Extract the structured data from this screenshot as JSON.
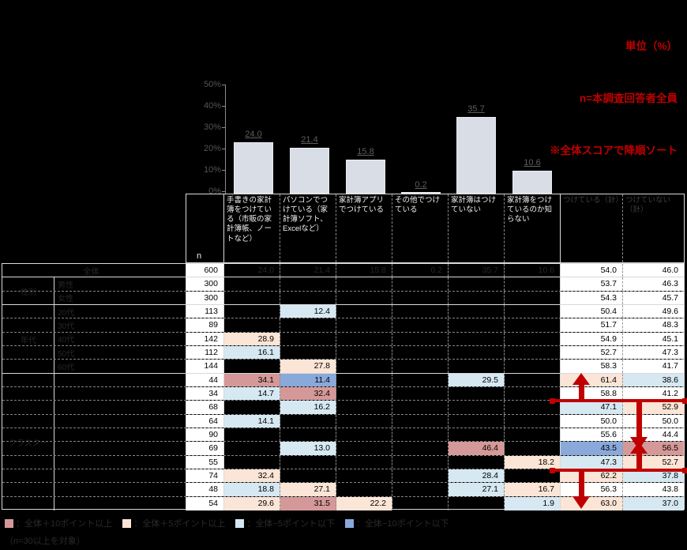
{
  "annotations": {
    "unit": "単位（%）",
    "n_note": "n=本調査回答者全員",
    "sort_note": "※全体スコアで降順ソート"
  },
  "chart_data": {
    "type": "bar",
    "title": "",
    "xlabel": "",
    "ylabel": "%",
    "ylim": [
      0,
      50
    ],
    "grid": false,
    "legend_position": "none",
    "categories": [
      "手書きの家計簿をつけている（市販の家計簿帳、ノートなど）",
      "パソコンでつけている（家計簿ソフト、Excelなど）",
      "家計簿アプリでつけている",
      "その他でつけている",
      "家計簿はつけていない",
      "家計簿をつけているのか知らない"
    ],
    "values": [
      24.0,
      21.4,
      15.8,
      0.2,
      35.7,
      10.6
    ],
    "bar_labels": [
      "24.0",
      "21.4",
      "15.8",
      "0.2",
      "35.7",
      "10.6"
    ],
    "ytick_labels": [
      "50%",
      "40%",
      "30%",
      "20%",
      "10%",
      "0%"
    ]
  },
  "table": {
    "n_header": "n",
    "col_headers": [
      "手書きの家計簿をつけている（市販の家計簿帳、ノートなど）",
      "パソコンでつけている（家計簿ソフト、Excelなど）",
      "家計簿アプリでつけている",
      "その他でつけている",
      "家計簿はつけていない",
      "家計簿をつけているのか知らない"
    ],
    "total_headers": [
      "つけている（計）",
      "つけていない（計）"
    ],
    "groups": [
      {
        "label": "全体",
        "span": 1
      },
      {
        "label": "性別",
        "span": 2
      },
      {
        "label": "年代",
        "span": 5
      },
      {
        "label": "クラスター",
        "span": 10
      }
    ],
    "rows": [
      {
        "label": "全体",
        "n": "600",
        "cells": [
          {
            "v": "24.0",
            "h": "g"
          },
          {
            "v": "21.4",
            "h": "g"
          },
          {
            "v": "15.8",
            "h": "g"
          },
          {
            "v": "0.2",
            "h": "g"
          },
          {
            "v": "35.7",
            "h": "g"
          },
          {
            "v": "10.6",
            "h": "g"
          }
        ],
        "totals": [
          {
            "v": "54.0",
            "h": ""
          },
          {
            "v": "46.0",
            "h": ""
          }
        ]
      },
      {
        "label": "男性",
        "n": "300",
        "cells": [
          {
            "v": "",
            "h": ""
          },
          {
            "v": "",
            "h": ""
          },
          {
            "v": "",
            "h": ""
          },
          {
            "v": "",
            "h": ""
          },
          {
            "v": "",
            "h": ""
          },
          {
            "v": "",
            "h": ""
          }
        ],
        "totals": [
          {
            "v": "53.7",
            "h": ""
          },
          {
            "v": "46.3",
            "h": ""
          }
        ]
      },
      {
        "label": "女性",
        "n": "300",
        "cells": [
          {
            "v": "",
            "h": ""
          },
          {
            "v": "",
            "h": ""
          },
          {
            "v": "",
            "h": ""
          },
          {
            "v": "",
            "h": ""
          },
          {
            "v": "",
            "h": ""
          },
          {
            "v": "",
            "h": ""
          }
        ],
        "totals": [
          {
            "v": "54.3",
            "h": ""
          },
          {
            "v": "45.7",
            "h": ""
          }
        ]
      },
      {
        "label": "20代",
        "n": "113",
        "cells": [
          {
            "v": "",
            "h": ""
          },
          {
            "v": "12.4",
            "h": "b"
          },
          {
            "v": "",
            "h": ""
          },
          {
            "v": "",
            "h": ""
          },
          {
            "v": "",
            "h": ""
          },
          {
            "v": "",
            "h": ""
          }
        ],
        "totals": [
          {
            "v": "50.4",
            "h": ""
          },
          {
            "v": "49.6",
            "h": ""
          }
        ]
      },
      {
        "label": "30代",
        "n": "89",
        "cells": [
          {
            "v": "",
            "h": ""
          },
          {
            "v": "",
            "h": ""
          },
          {
            "v": "",
            "h": ""
          },
          {
            "v": "",
            "h": ""
          },
          {
            "v": "",
            "h": ""
          },
          {
            "v": "",
            "h": ""
          }
        ],
        "totals": [
          {
            "v": "51.7",
            "h": ""
          },
          {
            "v": "48.3",
            "h": ""
          }
        ]
      },
      {
        "label": "40代",
        "n": "142",
        "cells": [
          {
            "v": "28.9",
            "h": "p"
          },
          {
            "v": "",
            "h": ""
          },
          {
            "v": "",
            "h": ""
          },
          {
            "v": "",
            "h": ""
          },
          {
            "v": "",
            "h": ""
          },
          {
            "v": "",
            "h": ""
          }
        ],
        "totals": [
          {
            "v": "54.9",
            "h": ""
          },
          {
            "v": "45.1",
            "h": ""
          }
        ]
      },
      {
        "label": "50代",
        "n": "112",
        "cells": [
          {
            "v": "16.1",
            "h": "b"
          },
          {
            "v": "",
            "h": ""
          },
          {
            "v": "",
            "h": ""
          },
          {
            "v": "",
            "h": ""
          },
          {
            "v": "",
            "h": ""
          },
          {
            "v": "",
            "h": ""
          }
        ],
        "totals": [
          {
            "v": "52.7",
            "h": ""
          },
          {
            "v": "47.3",
            "h": ""
          }
        ]
      },
      {
        "label": "60代",
        "n": "144",
        "cells": [
          {
            "v": "",
            "h": ""
          },
          {
            "v": "27.8",
            "h": "p"
          },
          {
            "v": "",
            "h": ""
          },
          {
            "v": "",
            "h": ""
          },
          {
            "v": "",
            "h": ""
          },
          {
            "v": "",
            "h": ""
          }
        ],
        "totals": [
          {
            "v": "58.3",
            "h": ""
          },
          {
            "v": "41.7",
            "h": ""
          }
        ]
      },
      {
        "label": "",
        "n": "44",
        "cells": [
          {
            "v": "34.1",
            "h": "P"
          },
          {
            "v": "11.4",
            "h": "B"
          },
          {
            "v": "",
            "h": ""
          },
          {
            "v": "",
            "h": ""
          },
          {
            "v": "29.5",
            "h": "b"
          },
          {
            "v": "",
            "h": ""
          }
        ],
        "totals": [
          {
            "v": "61.4",
            "h": "p"
          },
          {
            "v": "38.6",
            "h": "b"
          }
        ]
      },
      {
        "label": "",
        "n": "34",
        "cells": [
          {
            "v": "14.7",
            "h": "b"
          },
          {
            "v": "32.4",
            "h": "P"
          },
          {
            "v": "",
            "h": ""
          },
          {
            "v": "",
            "h": ""
          },
          {
            "v": "",
            "h": ""
          },
          {
            "v": "",
            "h": ""
          }
        ],
        "totals": [
          {
            "v": "58.8",
            "h": ""
          },
          {
            "v": "41.2",
            "h": ""
          }
        ]
      },
      {
        "label": "",
        "n": "68",
        "cells": [
          {
            "v": "",
            "h": ""
          },
          {
            "v": "16.2",
            "h": "b"
          },
          {
            "v": "",
            "h": ""
          },
          {
            "v": "",
            "h": ""
          },
          {
            "v": "",
            "h": ""
          },
          {
            "v": "",
            "h": ""
          }
        ],
        "totals": [
          {
            "v": "47.1",
            "h": "b"
          },
          {
            "v": "52.9",
            "h": "p"
          }
        ]
      },
      {
        "label": "",
        "n": "64",
        "cells": [
          {
            "v": "14.1",
            "h": "b"
          },
          {
            "v": "",
            "h": ""
          },
          {
            "v": "",
            "h": ""
          },
          {
            "v": "",
            "h": ""
          },
          {
            "v": "",
            "h": ""
          },
          {
            "v": "",
            "h": ""
          }
        ],
        "totals": [
          {
            "v": "50.0",
            "h": ""
          },
          {
            "v": "50.0",
            "h": ""
          }
        ]
      },
      {
        "label": "",
        "n": "90",
        "cells": [
          {
            "v": "",
            "h": ""
          },
          {
            "v": "",
            "h": ""
          },
          {
            "v": "",
            "h": ""
          },
          {
            "v": "",
            "h": ""
          },
          {
            "v": "",
            "h": ""
          },
          {
            "v": "",
            "h": ""
          }
        ],
        "totals": [
          {
            "v": "55.6",
            "h": ""
          },
          {
            "v": "44.4",
            "h": ""
          }
        ]
      },
      {
        "label": "",
        "n": "69",
        "cells": [
          {
            "v": "",
            "h": ""
          },
          {
            "v": "13.0",
            "h": "b"
          },
          {
            "v": "",
            "h": ""
          },
          {
            "v": "",
            "h": ""
          },
          {
            "v": "46.4",
            "h": "P"
          },
          {
            "v": "",
            "h": ""
          }
        ],
        "totals": [
          {
            "v": "43.5",
            "h": "B"
          },
          {
            "v": "56.5",
            "h": "P"
          }
        ]
      },
      {
        "label": "",
        "n": "55",
        "cells": [
          {
            "v": "",
            "h": ""
          },
          {
            "v": "",
            "h": ""
          },
          {
            "v": "",
            "h": ""
          },
          {
            "v": "",
            "h": ""
          },
          {
            "v": "",
            "h": ""
          },
          {
            "v": "18.2",
            "h": "p"
          }
        ],
        "totals": [
          {
            "v": "47.3",
            "h": "b"
          },
          {
            "v": "52.7",
            "h": "p"
          }
        ]
      },
      {
        "label": "",
        "n": "74",
        "cells": [
          {
            "v": "32.4",
            "h": "p"
          },
          {
            "v": "",
            "h": ""
          },
          {
            "v": "",
            "h": ""
          },
          {
            "v": "",
            "h": ""
          },
          {
            "v": "28.4",
            "h": "b"
          },
          {
            "v": "",
            "h": ""
          }
        ],
        "totals": [
          {
            "v": "62.2",
            "h": "p"
          },
          {
            "v": "37.8",
            "h": "b"
          }
        ]
      },
      {
        "label": "",
        "n": "48",
        "cells": [
          {
            "v": "18.8",
            "h": "b"
          },
          {
            "v": "27.1",
            "h": "p"
          },
          {
            "v": "",
            "h": ""
          },
          {
            "v": "",
            "h": ""
          },
          {
            "v": "27.1",
            "h": "b"
          },
          {
            "v": "16.7",
            "h": "p"
          }
        ],
        "totals": [
          {
            "v": "56.3",
            "h": ""
          },
          {
            "v": "43.8",
            "h": ""
          }
        ]
      },
      {
        "label": "",
        "n": "54",
        "cells": [
          {
            "v": "29.6",
            "h": "p"
          },
          {
            "v": "31.5",
            "h": "P"
          },
          {
            "v": "22.2",
            "h": "p"
          },
          {
            "v": "",
            "h": ""
          },
          {
            "v": "",
            "h": ""
          },
          {
            "v": "1.9",
            "h": "b"
          }
        ],
        "totals": [
          {
            "v": "63.0",
            "h": "p"
          },
          {
            "v": "37.0",
            "h": "b"
          }
        ]
      }
    ]
  },
  "legend": {
    "items": [
      {
        "color": "#D59898",
        "label": "：全体＋10ポイント以上"
      },
      {
        "color": "#FBE5D6",
        "label": "：全体＋5ポイント以上"
      },
      {
        "color": "#D6E8F2",
        "label": "：全体−5ポイント以下"
      },
      {
        "color": "#89A9DB",
        "label": "：全体−10ポイント以下"
      }
    ],
    "note": "（n=30以上を対象）"
  },
  "colors": {
    "accent_red": "#C00000",
    "bar_fill": "#D8DDE6",
    "hl_plus5": "#FBE5D6",
    "hl_plus10": "#D59898",
    "hl_minus5": "#D6E8F2",
    "hl_minus10": "#89A9DB"
  }
}
